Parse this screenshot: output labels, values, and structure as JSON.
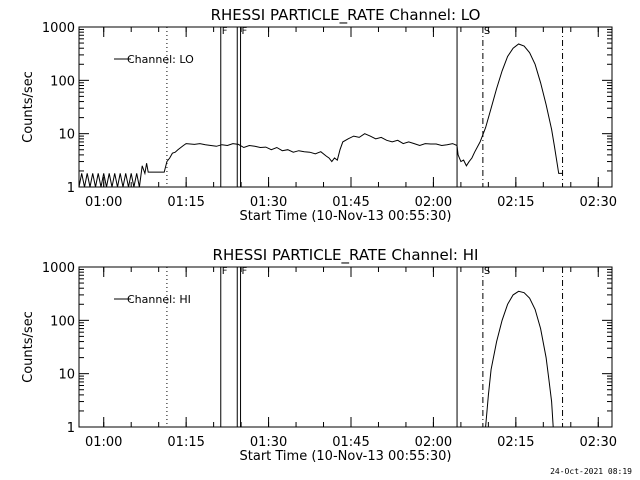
{
  "footer": {
    "timestamp": "24-Oct-2021 08:19"
  },
  "colors": {
    "line": "#000000",
    "background": "#ffffff"
  },
  "chart_data": [
    {
      "type": "line",
      "title": "RHESSI PARTICLE_RATE Channel: LO",
      "xlabel": "Start Time (10-Nov-13 00:55:30)",
      "ylabel": "Counts/sec",
      "x_unit": "minutes after 00:55:30",
      "xlim": [
        0,
        97
      ],
      "ylim": [
        1,
        1000
      ],
      "yscale": "log",
      "x_ticks": [
        {
          "x": 4.5,
          "label": "01:00"
        },
        {
          "x": 19.5,
          "label": "01:15"
        },
        {
          "x": 34.5,
          "label": "01:30"
        },
        {
          "x": 49.5,
          "label": "01:45"
        },
        {
          "x": 64.5,
          "label": "02:00"
        },
        {
          "x": 79.5,
          "label": "02:15"
        },
        {
          "x": 94.5,
          "label": "02:30"
        }
      ],
      "y_ticks": [
        {
          "y": 1,
          "label": "1"
        },
        {
          "y": 10,
          "label": "10"
        },
        {
          "y": 100,
          "label": "100"
        },
        {
          "y": 1000,
          "label": "1000"
        }
      ],
      "legend": {
        "label": "Channel: LO",
        "placement": "top-left"
      },
      "markers": [
        {
          "x": 16.0,
          "style": "dotted",
          "label": ""
        },
        {
          "x": 25.8,
          "style": "solid",
          "label": "F"
        },
        {
          "x": 28.8,
          "style": "solid",
          "label": ""
        },
        {
          "x": 29.4,
          "style": "solid",
          "label": "F"
        },
        {
          "x": 68.8,
          "style": "solid",
          "label": ""
        },
        {
          "x": 73.5,
          "style": "dashdot",
          "label": "S"
        },
        {
          "x": 88.0,
          "style": "dashdot",
          "label": ""
        }
      ],
      "series": [
        {
          "points": [
            [
              0,
              1
            ],
            [
              0.5,
              1.8
            ],
            [
              1,
              1
            ],
            [
              1.5,
              1.8
            ],
            [
              2,
              1
            ],
            [
              2.5,
              1.8
            ],
            [
              3,
              1
            ],
            [
              3.5,
              1.8
            ],
            [
              4,
              1
            ],
            [
              4.5,
              1.8
            ],
            [
              5,
              1
            ],
            [
              5.5,
              1.8
            ],
            [
              6,
              1
            ],
            [
              6.5,
              1.8
            ],
            [
              7,
              1
            ],
            [
              7.5,
              1.8
            ],
            [
              8,
              1
            ],
            [
              8.5,
              1.8
            ],
            [
              9,
              1
            ],
            [
              9.5,
              1.8
            ],
            [
              10,
              1
            ],
            [
              10.5,
              1.8
            ],
            [
              11,
              1
            ],
            [
              11.5,
              2.5
            ],
            [
              12,
              1.8
            ],
            [
              12.3,
              2.8
            ],
            [
              12.6,
              1.9
            ],
            [
              13.5,
              1.9
            ],
            [
              14.5,
              1.9
            ],
            [
              15.5,
              1.9
            ],
            [
              16,
              3
            ],
            [
              16.5,
              3.5
            ],
            [
              17,
              4.3
            ],
            [
              17.5,
              4.5
            ],
            [
              18,
              5
            ],
            [
              19,
              6
            ],
            [
              19.5,
              6.5
            ],
            [
              21,
              6.3
            ],
            [
              22,
              6.5
            ],
            [
              23,
              6.2
            ],
            [
              24,
              6
            ],
            [
              25,
              5.8
            ],
            [
              26,
              6.2
            ],
            [
              27,
              6
            ],
            [
              28,
              6.5
            ],
            [
              29,
              6.3
            ],
            [
              30,
              5.5
            ],
            [
              31,
              6
            ],
            [
              32,
              5.8
            ],
            [
              33,
              5.5
            ],
            [
              34,
              5.6
            ],
            [
              35,
              5
            ],
            [
              36,
              5.5
            ],
            [
              37,
              4.8
            ],
            [
              38,
              5
            ],
            [
              39,
              4.5
            ],
            [
              40,
              4.8
            ],
            [
              41,
              4.6
            ],
            [
              42,
              4.5
            ],
            [
              43,
              4.2
            ],
            [
              44,
              4.6
            ],
            [
              45,
              3.8
            ],
            [
              45.5,
              3.5
            ],
            [
              46,
              3
            ],
            [
              46.5,
              3.5
            ],
            [
              47,
              3.2
            ],
            [
              47.5,
              5
            ],
            [
              48,
              7
            ],
            [
              49,
              8
            ],
            [
              50,
              9
            ],
            [
              51,
              8.5
            ],
            [
              52,
              10
            ],
            [
              53,
              9
            ],
            [
              54,
              8
            ],
            [
              55,
              8.5
            ],
            [
              56,
              7.5
            ],
            [
              57,
              7
            ],
            [
              58,
              7.5
            ],
            [
              59,
              6.5
            ],
            [
              60,
              7
            ],
            [
              61,
              6.5
            ],
            [
              62,
              6
            ],
            [
              63,
              6.5
            ],
            [
              64,
              6.4
            ],
            [
              65,
              6.4
            ],
            [
              66,
              6
            ],
            [
              67,
              6.2
            ],
            [
              68,
              6.5
            ],
            [
              68.8,
              6
            ],
            [
              69,
              4
            ],
            [
              69.5,
              3
            ],
            [
              70,
              3.2
            ],
            [
              70.5,
              2.5
            ],
            [
              71,
              3
            ],
            [
              71.5,
              3.5
            ],
            [
              72,
              4.5
            ],
            [
              73,
              7
            ],
            [
              74,
              13
            ],
            [
              75,
              30
            ],
            [
              76,
              70
            ],
            [
              77,
              150
            ],
            [
              78,
              280
            ],
            [
              79,
              400
            ],
            [
              80,
              480
            ],
            [
              81,
              440
            ],
            [
              82,
              330
            ],
            [
              83,
              200
            ],
            [
              84,
              90
            ],
            [
              85,
              35
            ],
            [
              86,
              12
            ],
            [
              86.5,
              6
            ],
            [
              87,
              2.8
            ],
            [
              87.3,
              1.8
            ],
            [
              88,
              1.8
            ]
          ]
        }
      ]
    },
    {
      "type": "line",
      "title": "RHESSI PARTICLE_RATE Channel: HI",
      "xlabel": "Start Time (10-Nov-13 00:55:30)",
      "ylabel": "Counts/sec",
      "x_unit": "minutes after 00:55:30",
      "xlim": [
        0,
        97
      ],
      "ylim": [
        1,
        1000
      ],
      "yscale": "log",
      "x_ticks": [
        {
          "x": 4.5,
          "label": "01:00"
        },
        {
          "x": 19.5,
          "label": "01:15"
        },
        {
          "x": 34.5,
          "label": "01:30"
        },
        {
          "x": 49.5,
          "label": "01:45"
        },
        {
          "x": 64.5,
          "label": "02:00"
        },
        {
          "x": 79.5,
          "label": "02:15"
        },
        {
          "x": 94.5,
          "label": "02:30"
        }
      ],
      "y_ticks": [
        {
          "y": 1,
          "label": "1"
        },
        {
          "y": 10,
          "label": "10"
        },
        {
          "y": 100,
          "label": "100"
        },
        {
          "y": 1000,
          "label": "1000"
        }
      ],
      "legend": {
        "label": "Channel: HI",
        "placement": "top-left"
      },
      "markers": [
        {
          "x": 16.0,
          "style": "dotted",
          "label": ""
        },
        {
          "x": 25.8,
          "style": "solid",
          "label": "F"
        },
        {
          "x": 28.8,
          "style": "solid",
          "label": ""
        },
        {
          "x": 29.4,
          "style": "solid",
          "label": "F"
        },
        {
          "x": 68.8,
          "style": "solid",
          "label": ""
        },
        {
          "x": 73.5,
          "style": "dashdot",
          "label": "S"
        },
        {
          "x": 88.0,
          "style": "dashdot",
          "label": ""
        }
      ],
      "series": [
        {
          "points": [
            [
              74,
              1
            ],
            [
              74.5,
              4
            ],
            [
              75,
              12
            ],
            [
              76,
              40
            ],
            [
              77,
              100
            ],
            [
              78,
              200
            ],
            [
              79,
              300
            ],
            [
              80,
              350
            ],
            [
              81,
              330
            ],
            [
              82,
              260
            ],
            [
              83,
              160
            ],
            [
              84,
              70
            ],
            [
              85,
              20
            ],
            [
              85.5,
              8
            ],
            [
              86,
              3
            ],
            [
              86.3,
              1
            ]
          ]
        }
      ]
    }
  ]
}
